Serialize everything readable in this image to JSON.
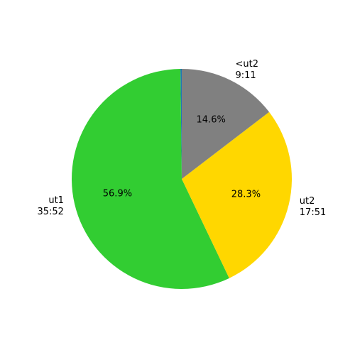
{
  "chart_data": {
    "type": "pie",
    "categories": [
      null,
      "ut1\n35:52",
      "ut2\n17:51",
      "<ut2\n9:11"
    ],
    "values": [
      0.2,
      56.9,
      28.3,
      14.6
    ],
    "value_labels": [
      null,
      "56.9%",
      "28.3%",
      "14.6%"
    ],
    "colors": [
      "#1f77b4",
      "#32cd32",
      "#ffd700",
      "#808080"
    ]
  }
}
